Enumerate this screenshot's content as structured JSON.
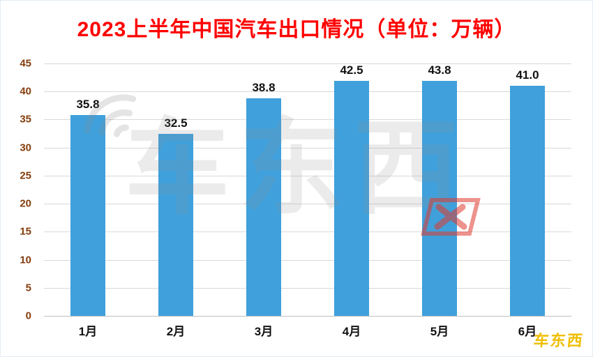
{
  "title": "2023上半年中国汽车出口情况（单位：万辆）",
  "watermark": {
    "main": "车东西",
    "corner": "车东西"
  },
  "colors": {
    "title": "#ff0000",
    "bar": "#3fa0dc",
    "y_tick_label": "#843c0c",
    "gridline": "#d9d9d9",
    "data_label": "#111111"
  },
  "chart_data": {
    "type": "bar",
    "title": "2023上半年中国汽车出口情况（单位：万辆）",
    "categories": [
      "1月",
      "2月",
      "3月",
      "4月",
      "5月",
      "6月"
    ],
    "values": [
      35.8,
      32.5,
      38.8,
      42.5,
      43.8,
      41.0
    ],
    "data_labels": [
      "35.8",
      "32.5",
      "38.8",
      "42.5",
      "43.8",
      "41.0"
    ],
    "xlabel": "",
    "ylabel": "",
    "ylim": [
      0,
      45
    ],
    "yticks": [
      0,
      5,
      10,
      15,
      20,
      25,
      30,
      35,
      40,
      45
    ],
    "grid": true,
    "legend": "none",
    "bar_color": "#3fa0dc"
  }
}
